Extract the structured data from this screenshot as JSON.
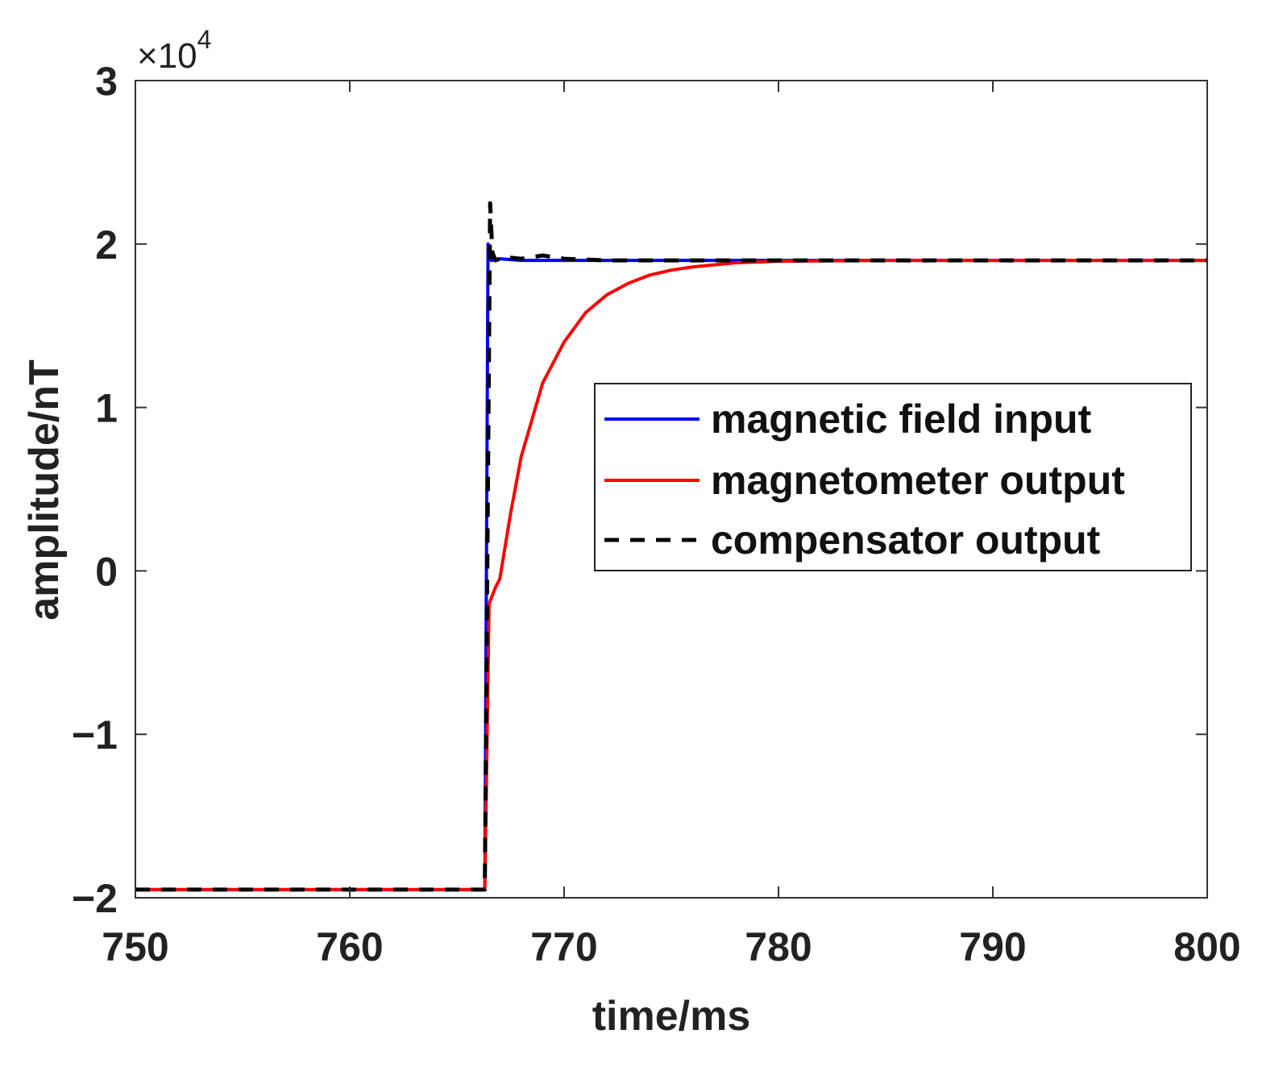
{
  "chart_data": {
    "type": "line",
    "xlabel": "time/ms",
    "ylabel": "amplitude/nT",
    "xlim": [
      750,
      800
    ],
    "ylim": [
      -20000,
      30000
    ],
    "x_ticks": [
      750,
      760,
      770,
      780,
      790,
      800
    ],
    "x_tick_labels": [
      "750",
      "760",
      "770",
      "780",
      "790",
      "800"
    ],
    "y_ticks": [
      -20000,
      -10000,
      0,
      10000,
      20000,
      30000
    ],
    "y_tick_labels": [
      "−2",
      "−1",
      "0",
      "1",
      "2",
      "3"
    ],
    "y_exponent": {
      "prefix": "×10",
      "power": "4"
    },
    "grid": false,
    "legend_position": "center-right",
    "series": [
      {
        "name": "magnetic field input",
        "color": "#0000ff",
        "style": "solid",
        "x": [
          750,
          766.3,
          766.45,
          766.6,
          767.0,
          768.0,
          770,
          800
        ],
        "y": [
          -19500,
          -19500,
          20000,
          19000,
          19100,
          19000,
          19000,
          19000
        ]
      },
      {
        "name": "magnetometer output",
        "color": "#ff0000",
        "style": "solid",
        "x": [
          750,
          766.3,
          766.5,
          766.8,
          767.0,
          767.5,
          768.0,
          769.0,
          770.0,
          771.0,
          772.0,
          773.0,
          774.0,
          775.0,
          776.0,
          778.0,
          780.0,
          785.0,
          800
        ],
        "y": [
          -19500,
          -19500,
          -2000,
          -1000,
          -500,
          3500,
          7000,
          11500,
          14000,
          15800,
          16900,
          17600,
          18100,
          18400,
          18600,
          18850,
          18950,
          19000,
          19000
        ]
      },
      {
        "name": "compensator output",
        "color": "#000000",
        "style": "dashed",
        "x": [
          750,
          766.3,
          766.55,
          766.65,
          766.8,
          767.2,
          768.0,
          769.0,
          770.0,
          772.0,
          800
        ],
        "y": [
          -19500,
          -19500,
          22500,
          19500,
          19000,
          19200,
          19100,
          19300,
          19100,
          19000,
          19000
        ]
      }
    ]
  }
}
